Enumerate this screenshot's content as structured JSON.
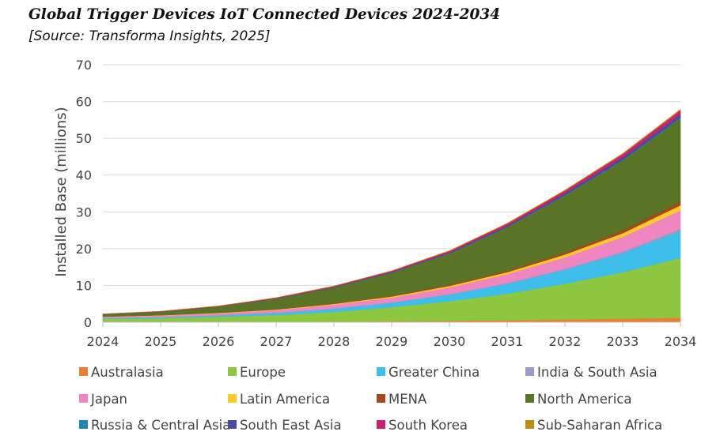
{
  "chart_data": {
    "type": "area",
    "stacked": true,
    "title": "Global Trigger Devices IoT Connected Devices 2024-2034",
    "subtitle": "[Source: Transforma Insights, 2025]",
    "xlabel": "",
    "ylabel": "Installed Base (millions)",
    "ylim": [
      0,
      70
    ],
    "yticks": [
      0,
      10,
      20,
      30,
      40,
      50,
      60,
      70
    ],
    "grid": true,
    "legend_position": "bottom",
    "x": [
      "2024",
      "2025",
      "2026",
      "2027",
      "2028",
      "2029",
      "2030",
      "2031",
      "2032",
      "2033",
      "2034"
    ],
    "series": [
      {
        "name": "Australasia",
        "color": "#ED7D31",
        "values": [
          0.05,
          0.08,
          0.1,
          0.15,
          0.2,
          0.3,
          0.4,
          0.55,
          0.75,
          1.0,
          1.2
        ]
      },
      {
        "name": "Europe",
        "color": "#8DC63F",
        "values": [
          0.9,
          1.0,
          1.4,
          1.8,
          2.6,
          3.8,
          5.3,
          7.2,
          9.7,
          12.6,
          16.3
        ]
      },
      {
        "name": "Greater China",
        "color": "#3DBEEB",
        "values": [
          0.2,
          0.3,
          0.4,
          0.6,
          0.9,
          1.2,
          1.8,
          2.7,
          3.8,
          5.2,
          7.3
        ]
      },
      {
        "name": "India & South Asia",
        "color": "#9A9ACB",
        "values": [
          0.02,
          0.03,
          0.04,
          0.06,
          0.08,
          0.1,
          0.15,
          0.2,
          0.3,
          0.4,
          0.6
        ]
      },
      {
        "name": "Japan",
        "color": "#EF86C0",
        "values": [
          0.3,
          0.4,
          0.5,
          0.7,
          1.0,
          1.3,
          1.8,
          2.4,
          3.1,
          4.0,
          5.0
        ]
      },
      {
        "name": "Latin America",
        "color": "#FFC928",
        "values": [
          0.05,
          0.08,
          0.1,
          0.15,
          0.2,
          0.3,
          0.4,
          0.55,
          0.75,
          1.0,
          1.4
        ]
      },
      {
        "name": "MENA",
        "color": "#A5481A",
        "values": [
          0.03,
          0.05,
          0.07,
          0.1,
          0.15,
          0.2,
          0.3,
          0.4,
          0.55,
          0.75,
          1.0
        ]
      },
      {
        "name": "North America",
        "color": "#5A7426",
        "values": [
          0.6,
          0.9,
          1.6,
          2.8,
          4.3,
          6.2,
          8.5,
          11.8,
          15.5,
          19.0,
          22.6
        ]
      },
      {
        "name": "Russia & Central Asia",
        "color": "#1F86B4",
        "values": [
          0.01,
          0.01,
          0.02,
          0.03,
          0.04,
          0.05,
          0.07,
          0.1,
          0.13,
          0.17,
          0.22
        ]
      },
      {
        "name": "South East Asia",
        "color": "#4B4A9C",
        "values": [
          0.03,
          0.04,
          0.06,
          0.09,
          0.13,
          0.18,
          0.25,
          0.35,
          0.5,
          0.7,
          0.95
        ]
      },
      {
        "name": "South Korea",
        "color": "#CE1F71",
        "values": [
          0.05,
          0.07,
          0.1,
          0.15,
          0.2,
          0.3,
          0.4,
          0.55,
          0.7,
          0.9,
          1.1
        ]
      },
      {
        "name": "Sub-Saharan Africa",
        "color": "#BD8F10",
        "values": [
          0.01,
          0.01,
          0.02,
          0.03,
          0.04,
          0.05,
          0.07,
          0.09,
          0.12,
          0.15,
          0.2
        ]
      }
    ]
  }
}
